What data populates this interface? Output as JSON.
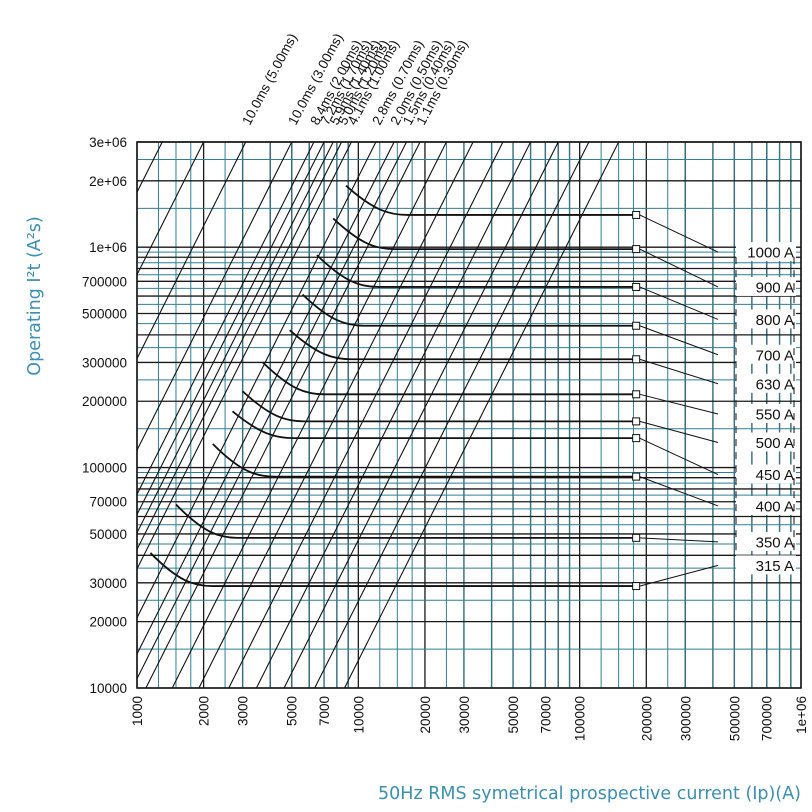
{
  "colors": {
    "grid_major": "#1a1a1a",
    "grid_minor": "#2f7f95",
    "curve": "#111111",
    "axis_title": "#3b8fb0"
  },
  "chart_data": {
    "type": "line",
    "title": "",
    "xlabel": "50Hz RMS symetrical prospective current (Ip)(A)",
    "ylabel": "Operating I²t (A²s)",
    "xscale": "log",
    "yscale": "log",
    "xlim": [
      1000,
      1000000
    ],
    "ylim": [
      10000,
      3000000
    ],
    "grid": true,
    "x_ticks": [
      {
        "value": 1000,
        "label": "1000"
      },
      {
        "value": 2000,
        "label": "2000"
      },
      {
        "value": 3000,
        "label": "3000"
      },
      {
        "value": 5000,
        "label": "5000"
      },
      {
        "value": 7000,
        "label": "7000"
      },
      {
        "value": 10000,
        "label": "10000"
      },
      {
        "value": 20000,
        "label": "20000"
      },
      {
        "value": 30000,
        "label": "30000"
      },
      {
        "value": 50000,
        "label": "50000"
      },
      {
        "value": 70000,
        "label": "70000"
      },
      {
        "value": 100000,
        "label": "100000"
      },
      {
        "value": 200000,
        "label": "200000"
      },
      {
        "value": 300000,
        "label": "300000"
      },
      {
        "value": 500000,
        "label": "500000"
      },
      {
        "value": 700000,
        "label": "700000"
      },
      {
        "value": 1000000,
        "label": "1e+06"
      }
    ],
    "y_ticks": [
      {
        "value": 10000,
        "label": "10000"
      },
      {
        "value": 20000,
        "label": "20000"
      },
      {
        "value": 30000,
        "label": "30000"
      },
      {
        "value": 50000,
        "label": "50000"
      },
      {
        "value": 70000,
        "label": "70000"
      },
      {
        "value": 100000,
        "label": "100000"
      },
      {
        "value": 200000,
        "label": "200000"
      },
      {
        "value": 300000,
        "label": "300000"
      },
      {
        "value": 500000,
        "label": "500000"
      },
      {
        "value": 700000,
        "label": "700000"
      },
      {
        "value": 1000000,
        "label": "1e+06"
      },
      {
        "value": 2000000,
        "label": "2e+06"
      },
      {
        "value": 3000000,
        "label": "3e+06"
      }
    ],
    "time_lines": [
      {
        "label": "10.0ms (5.00ms)",
        "x_at_top": 3100
      },
      {
        "label": "10.0ms (3.00ms)",
        "x_at_top": 5000
      },
      {
        "label": "8.4ms (2.00ms)",
        "x_at_top": 6300
      },
      {
        "label": "7.2ms (1.70ms)",
        "x_at_top": 7000
      },
      {
        "label": "5.9ms (1.40ms)",
        "x_at_top": 7700
      },
      {
        "label": "5.0ms (1.20ms)",
        "x_at_top": 8400
      },
      {
        "label": "4.1ms (1.00ms)",
        "x_at_top": 9300
      },
      {
        "label": "2.8ms (0.70ms)",
        "x_at_top": 12000
      },
      {
        "label": "2.0ms (0.50ms)",
        "x_at_top": 14500
      },
      {
        "label": "1.5ms (0.40ms)",
        "x_at_top": 16500
      },
      {
        "label": "1.1ms (0.30ms)",
        "x_at_top": 19000
      }
    ],
    "series": [
      {
        "name": "1000 A",
        "x_start": 8800,
        "i2t_start": 1900000,
        "i2t": 1400000,
        "label_y": 950000
      },
      {
        "name": "900 A",
        "x_start": 7700,
        "i2t_start": 1350000,
        "i2t": 980000,
        "label_y": 660000
      },
      {
        "name": "800 A",
        "x_start": 6500,
        "i2t_start": 920000,
        "i2t": 660000,
        "label_y": 470000
      },
      {
        "name": "700 A",
        "x_start": 5600,
        "i2t_start": 610000,
        "i2t": 440000,
        "label_y": 325000
      },
      {
        "name": "630 A",
        "x_start": 4900,
        "i2t_start": 420000,
        "i2t": 310000,
        "label_y": 240000
      },
      {
        "name": "550 A",
        "x_start": 3700,
        "i2t_start": 300000,
        "i2t": 215000,
        "label_y": 175000
      },
      {
        "name": "500 A",
        "x_start": 3000,
        "i2t_start": 222000,
        "i2t": 162000,
        "label_y": 130000
      },
      {
        "name": "450 A",
        "x_start": 2700,
        "i2t_start": 180000,
        "i2t": 136000,
        "label_y": 93000
      },
      {
        "name": "400 A",
        "x_start": 2200,
        "i2t_start": 128000,
        "i2t": 91000,
        "label_y": 67000
      },
      {
        "name": "350 A",
        "x_start": 1500,
        "i2t_start": 68000,
        "i2t": 48000,
        "label_y": 46000
      },
      {
        "name": "315 A",
        "x_start": 1150,
        "i2t_start": 41000,
        "i2t": 29000,
        "label_y": 36000
      }
    ],
    "marker_x": 180000
  }
}
